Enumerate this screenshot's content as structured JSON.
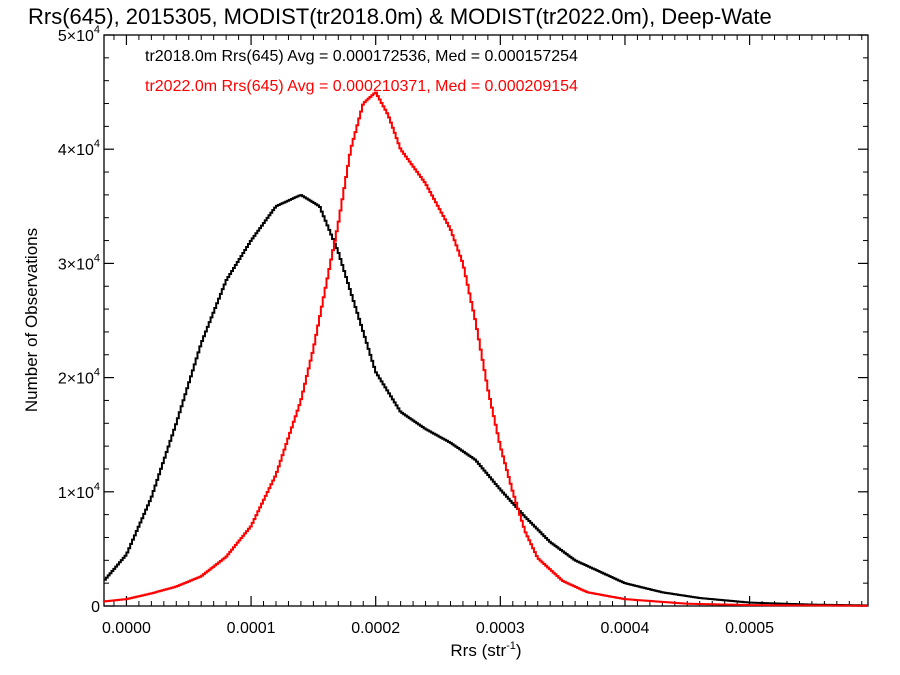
{
  "chart_data": {
    "type": "line",
    "step": true,
    "title": "Rrs(645), 2015305, MODIST(tr2018.0m) & MODIST(tr2022.0m), Deep-Wate",
    "xlabel": "Rrs (str",
    "xlabel_superscript": "-1",
    "xlabel_suffix": ")",
    "ylabel": "Number of Observations",
    "xlim": [
      -1.8e-05,
      0.000595
    ],
    "ylim": [
      0,
      50000
    ],
    "x_ticks": [
      {
        "value": 0.0,
        "label": "0.0000"
      },
      {
        "value": 0.0001,
        "label": "0.0001"
      },
      {
        "value": 0.0002,
        "label": "0.0002"
      },
      {
        "value": 0.0003,
        "label": "0.0003"
      },
      {
        "value": 0.0004,
        "label": "0.0004"
      },
      {
        "value": 0.0005,
        "label": "0.0005"
      }
    ],
    "y_ticks": [
      {
        "value": 0,
        "mantissa": "0",
        "exponent": ""
      },
      {
        "value": 10000,
        "mantissa": "1×10",
        "exponent": "4"
      },
      {
        "value": 20000,
        "mantissa": "2×10",
        "exponent": "4"
      },
      {
        "value": 30000,
        "mantissa": "3×10",
        "exponent": "4"
      },
      {
        "value": 40000,
        "mantissa": "4×10",
        "exponent": "4"
      },
      {
        "value": 50000,
        "mantissa": "5×10",
        "exponent": "4"
      }
    ],
    "legend_placement": "top-left",
    "series": [
      {
        "name": "tr2018.0m Rrs(645) Avg = 0.000172536, Med = 0.000157254",
        "color": "#000000",
        "points": [
          [
            -1.8e-05,
            2200
          ],
          [
            0.0,
            4500
          ],
          [
            2e-05,
            9500
          ],
          [
            4e-05,
            16000
          ],
          [
            6e-05,
            23000
          ],
          [
            8e-05,
            28500
          ],
          [
            0.0001,
            32000
          ],
          [
            0.00012,
            35000
          ],
          [
            0.00014,
            36000
          ],
          [
            0.000155,
            35000
          ],
          [
            0.00017,
            31000
          ],
          [
            0.00018,
            27500
          ],
          [
            0.0002,
            20500
          ],
          [
            0.00022,
            17000
          ],
          [
            0.00024,
            15500
          ],
          [
            0.00026,
            14300
          ],
          [
            0.00028,
            12800
          ],
          [
            0.0003,
            10200
          ],
          [
            0.00032,
            7800
          ],
          [
            0.00034,
            5600
          ],
          [
            0.00036,
            4000
          ],
          [
            0.00038,
            3000
          ],
          [
            0.0004,
            2000
          ],
          [
            0.00043,
            1200
          ],
          [
            0.00046,
            700
          ],
          [
            0.0005,
            300
          ],
          [
            0.00055,
            120
          ],
          [
            0.000595,
            50
          ]
        ]
      },
      {
        "name": "tr2022.0m Rrs(645) Avg = 0.000210371, Med = 0.000209154",
        "color": "#ff0000",
        "points": [
          [
            -1.8e-05,
            400
          ],
          [
            0.0,
            600
          ],
          [
            2e-05,
            1100
          ],
          [
            4e-05,
            1700
          ],
          [
            6e-05,
            2600
          ],
          [
            8e-05,
            4300
          ],
          [
            0.0001,
            7000
          ],
          [
            0.00012,
            11500
          ],
          [
            0.00014,
            18000
          ],
          [
            0.00015,
            22500
          ],
          [
            0.00016,
            28000
          ],
          [
            0.00017,
            33500
          ],
          [
            0.00018,
            40000
          ],
          [
            0.00019,
            44000
          ],
          [
            0.0002,
            45000
          ],
          [
            0.00021,
            43000
          ],
          [
            0.00022,
            40000
          ],
          [
            0.00024,
            37000
          ],
          [
            0.00026,
            33000
          ],
          [
            0.00027,
            30000
          ],
          [
            0.00028,
            25000
          ],
          [
            0.00029,
            19000
          ],
          [
            0.0003,
            14000
          ],
          [
            0.00031,
            10000
          ],
          [
            0.00032,
            6500
          ],
          [
            0.00033,
            4200
          ],
          [
            0.00035,
            2200
          ],
          [
            0.00037,
            1200
          ],
          [
            0.0004,
            600
          ],
          [
            0.00045,
            200
          ],
          [
            0.0005,
            80
          ],
          [
            0.000595,
            20
          ]
        ]
      }
    ]
  }
}
